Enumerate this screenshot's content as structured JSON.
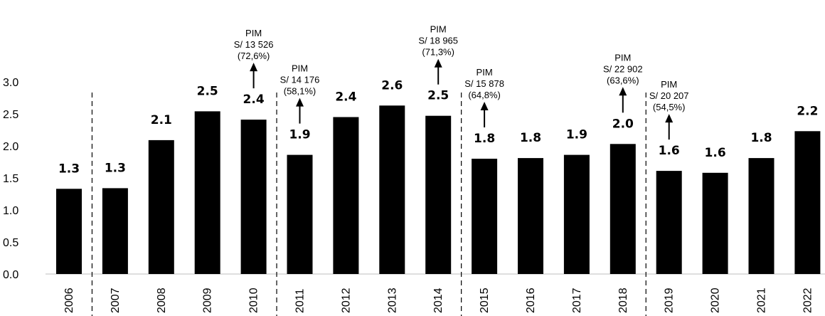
{
  "chart_data": {
    "type": "bar",
    "categories": [
      "2006",
      "2007",
      "2008",
      "2009",
      "2010",
      "2011",
      "2012",
      "2013",
      "2014",
      "2015",
      "2016",
      "2017",
      "2018",
      "2019",
      "2020",
      "2021",
      "2022"
    ],
    "values": [
      1.33,
      1.34,
      2.09,
      2.54,
      2.41,
      1.86,
      2.45,
      2.63,
      2.47,
      1.8,
      1.81,
      1.86,
      2.03,
      1.61,
      1.58,
      1.81,
      2.23
    ],
    "value_labels": [
      "1.3",
      "1.3",
      "2.1",
      "2.5",
      "2.4",
      "1.9",
      "2.4",
      "2.6",
      "2.5",
      "1.8",
      "1.8",
      "1.9",
      "2.0",
      "1.6",
      "1.6",
      "1.8",
      "2.2"
    ],
    "y_ticks": [
      "0.0",
      "0.5",
      "1.0",
      "1.5",
      "2.0",
      "2.5",
      "3.0"
    ],
    "ylim": [
      0,
      3.0
    ],
    "bar_color": "#000000",
    "dividers_after": [
      "2006",
      "2010",
      "2014",
      "2018"
    ],
    "annotations": [
      {
        "category": "2010",
        "lines": [
          "PIM",
          "S/ 13 526",
          "(72,6%)"
        ]
      },
      {
        "category": "2011",
        "lines": [
          "PIM",
          "S/ 14 176",
          "(58,1%)"
        ]
      },
      {
        "category": "2014",
        "lines": [
          "PIM",
          "S/ 18 965",
          "(71,3%)"
        ]
      },
      {
        "category": "2015",
        "lines": [
          "PIM",
          "S/ 15 878",
          "(64,8%)"
        ]
      },
      {
        "category": "2018",
        "lines": [
          "PIM",
          "S/ 22 902",
          "(63,6%)"
        ]
      },
      {
        "category": "2019",
        "lines": [
          "PIM",
          "S/ 20 207",
          "(54,5%)"
        ]
      }
    ],
    "title": "",
    "xlabel": "",
    "ylabel": "",
    "grid": false
  }
}
